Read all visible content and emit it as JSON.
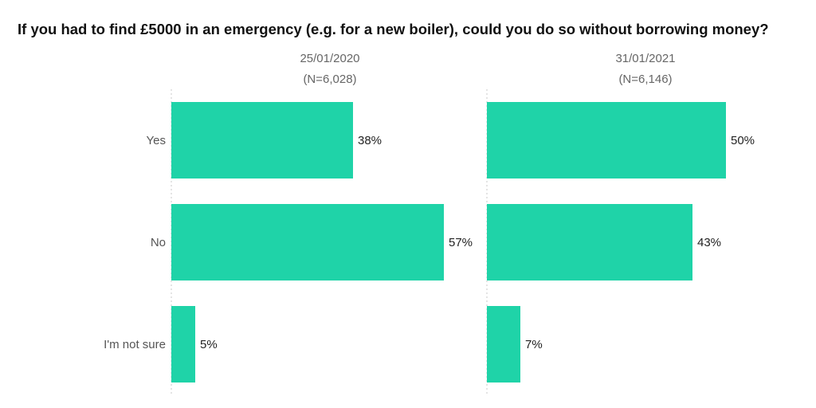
{
  "chart_data": {
    "type": "bar",
    "orientation": "horizontal",
    "title": "If you had to find £5000 in an emergency (e.g. for a new boiler), could you do so without borrowing money?",
    "categories": [
      "Yes",
      "No",
      "I'm not sure"
    ],
    "xlim": [
      0,
      100
    ],
    "unit": "%",
    "grid": false,
    "legend": "none",
    "bar_color": "#1fd3a8",
    "series": [
      {
        "name": "25/01/2020",
        "sample": "(N=6,028)",
        "values": [
          38,
          57,
          5
        ],
        "labels": [
          "38%",
          "57%",
          "5%"
        ]
      },
      {
        "name": "31/01/2021",
        "sample": "(N=6,146)",
        "values": [
          50,
          43,
          7
        ],
        "labels": [
          "50%",
          "43%",
          "7%"
        ]
      }
    ]
  }
}
